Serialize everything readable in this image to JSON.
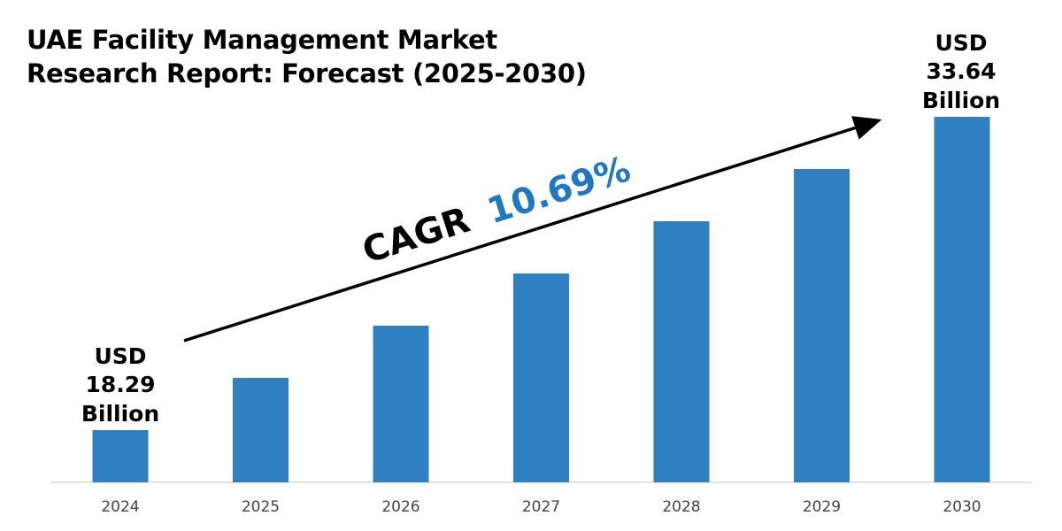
{
  "chart_data": {
    "type": "bar",
    "title_lines": [
      "UAE Facility Management Market",
      "Research Report: Forecast (2025-2030)"
    ],
    "categories": [
      "2024",
      "2025",
      "2026",
      "2027",
      "2028",
      "2029",
      "2030"
    ],
    "values": [
      18.29,
      null,
      null,
      null,
      null,
      null,
      33.64
    ],
    "unit": "USD Billion",
    "annotations": {
      "start_label": [
        "USD",
        "18.29",
        "Billion"
      ],
      "end_label": [
        "USD",
        "33.64",
        "Billion"
      ],
      "cagr_prefix": "CAGR",
      "cagr_value": "10.69%"
    },
    "grid": false,
    "legend": "none",
    "colors": {
      "bar": "#2e80c3",
      "cagr": "#1f78c1",
      "axis": "#d9d9d9"
    }
  }
}
